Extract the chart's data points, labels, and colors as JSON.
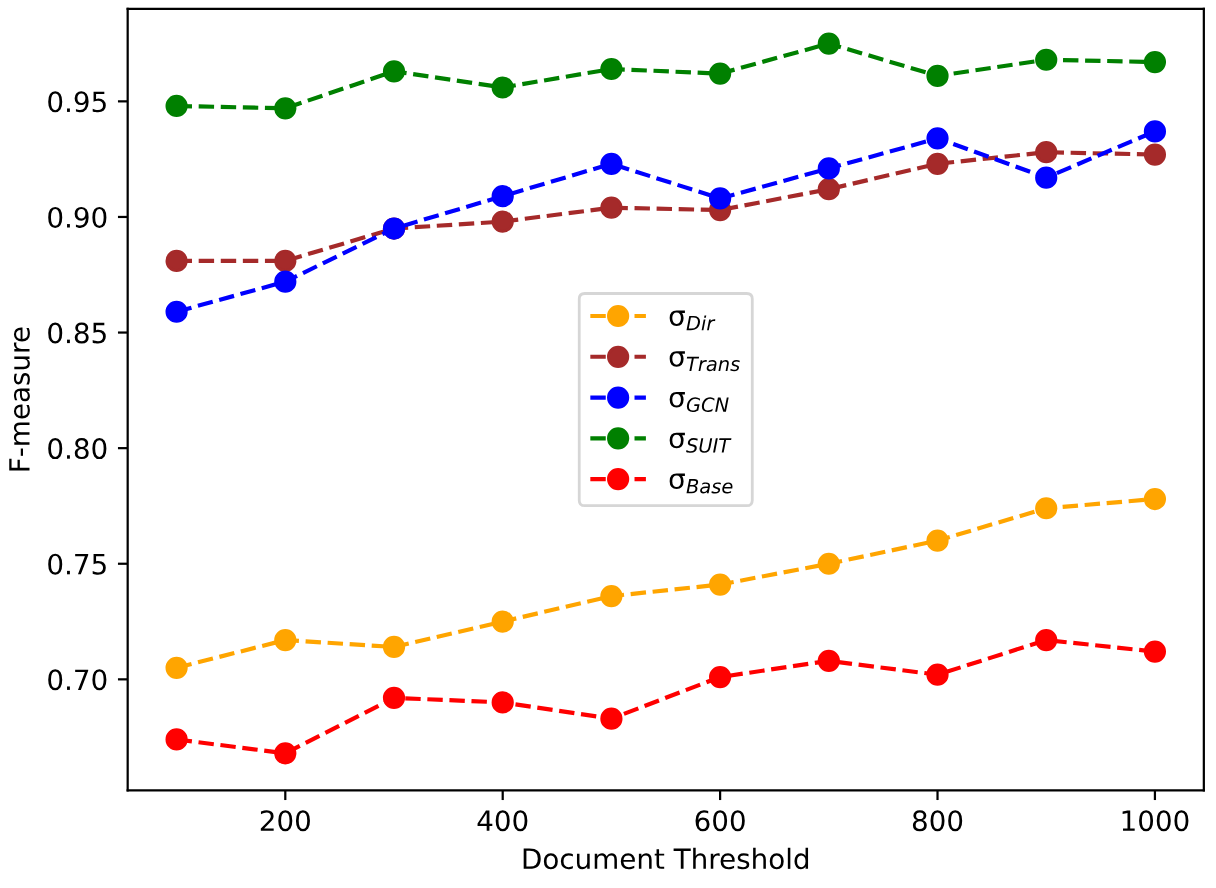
{
  "chart_data": {
    "type": "line",
    "xlabel": "Document Threshold",
    "ylabel": "F-measure",
    "x": [
      100,
      200,
      300,
      400,
      500,
      600,
      700,
      800,
      900,
      1000
    ],
    "series": [
      {
        "name": "σ$_{Dir}$",
        "color": "#ffa500",
        "values": [
          0.705,
          0.717,
          0.714,
          0.725,
          0.736,
          0.741,
          0.75,
          0.76,
          0.774,
          0.778
        ]
      },
      {
        "name": "σ$_{Trans}$",
        "color": "#a52a2a",
        "values": [
          0.881,
          0.881,
          0.895,
          0.898,
          0.904,
          0.903,
          0.912,
          0.923,
          0.928,
          0.927
        ]
      },
      {
        "name": "σ$_{GCN}$",
        "color": "#0000ff",
        "values": [
          0.859,
          0.872,
          0.895,
          0.909,
          0.923,
          0.908,
          0.921,
          0.934,
          0.917,
          0.937
        ]
      },
      {
        "name": "σ$_{SUIT}$",
        "color": "#008000",
        "values": [
          0.948,
          0.947,
          0.963,
          0.956,
          0.964,
          0.962,
          0.975,
          0.961,
          0.968,
          0.967
        ]
      },
      {
        "name": "σ$_{Base}$",
        "color": "#ff0000",
        "values": [
          0.674,
          0.668,
          0.692,
          0.69,
          0.683,
          0.701,
          0.708,
          0.702,
          0.717,
          0.712
        ]
      }
    ],
    "xlim": [
      55,
      1045
    ],
    "ylim": [
      0.652,
      0.99
    ],
    "xticks": [
      200,
      400,
      600,
      800,
      1000
    ],
    "yticks": [
      {
        "value": 0.7,
        "label": "0.70"
      },
      {
        "value": 0.75,
        "label": "0.75"
      },
      {
        "value": 0.8,
        "label": "0.80"
      },
      {
        "value": 0.85,
        "label": "0.85"
      },
      {
        "value": 0.9,
        "label": "0.90"
      },
      {
        "value": 0.95,
        "label": "0.95"
      }
    ],
    "marker": "circle",
    "line_style": "dashed",
    "legend": "center",
    "grid": false
  }
}
